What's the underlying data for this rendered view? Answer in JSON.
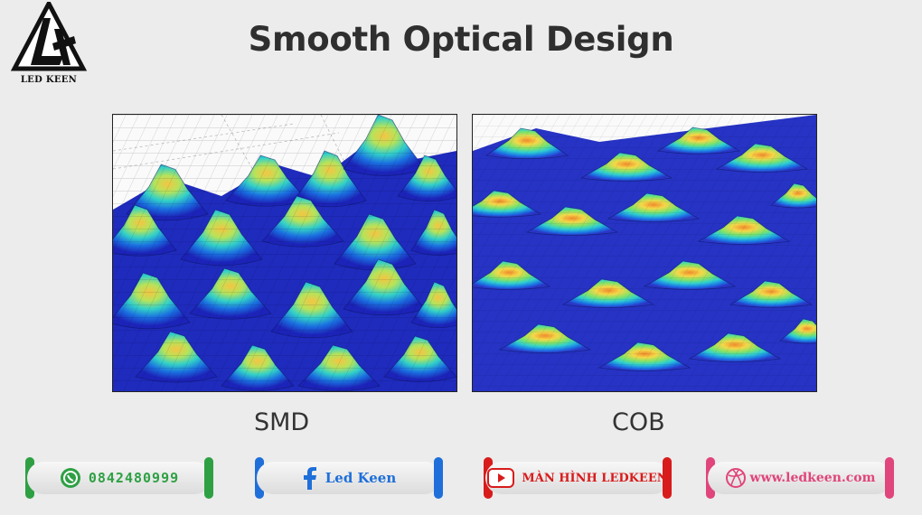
{
  "logo": {
    "text": "LED KEEN"
  },
  "title": "Smooth Optical Design",
  "panels": {
    "smd": {
      "caption": "SMD"
    },
    "cob": {
      "caption": "COB"
    }
  },
  "contacts": {
    "phone": {
      "icon": "whatsapp-icon",
      "label": "0842480999",
      "color": "#2ea043"
    },
    "facebook": {
      "icon": "facebook-icon",
      "label": "Led Keen",
      "color": "#1e6fd9"
    },
    "youtube": {
      "icon": "youtube-icon",
      "label": "MÀN HÌNH LEDKEEN",
      "color": "#d81b1b"
    },
    "website": {
      "icon": "dribbble-icon",
      "label": "www.ledkeen.com",
      "color": "#e0457b"
    }
  }
}
